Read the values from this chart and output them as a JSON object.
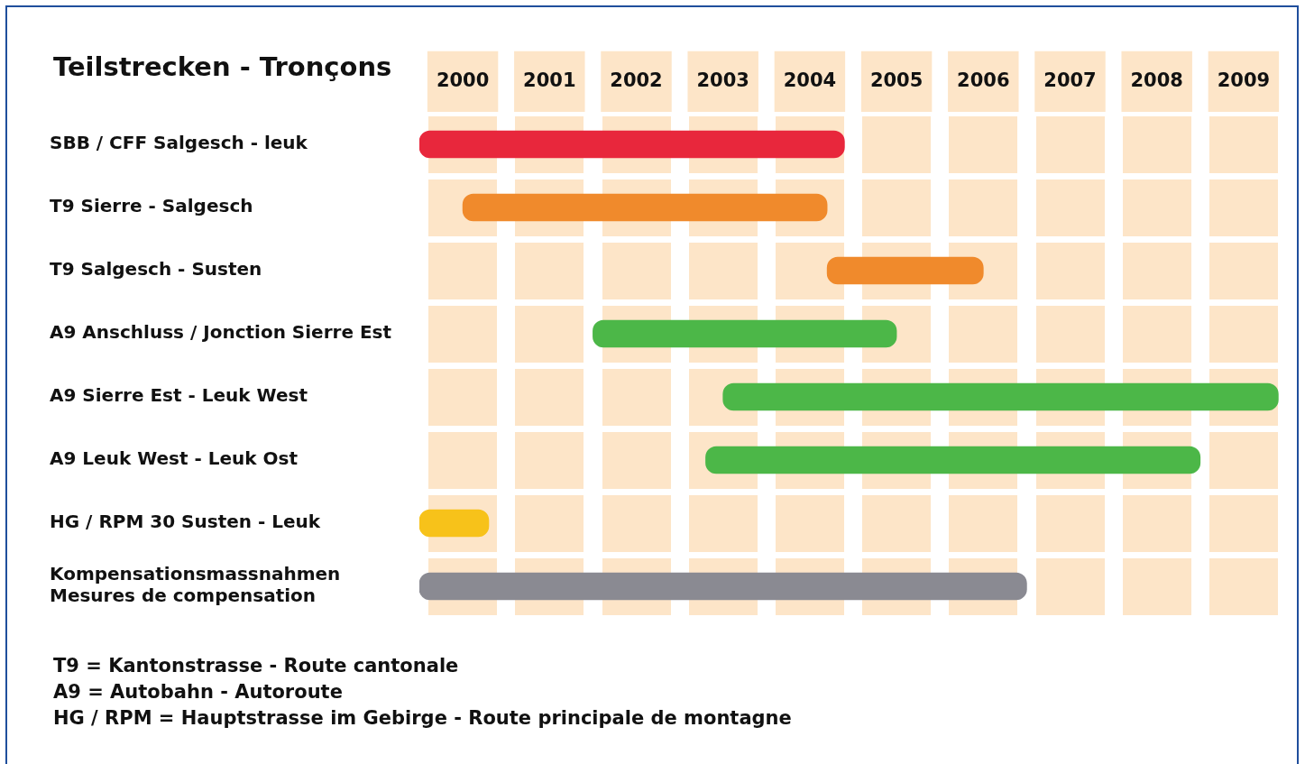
{
  "chart_data": {
    "type": "bar",
    "orientation": "horizontal",
    "title": "Teilstrecken - Tronçons",
    "categories": [
      "SBB / CFF Salgesch - leuk",
      "T9 Sierre - Salgesch",
      "T9 Salgesch - Susten",
      "A9 Anschluss / Jonction Sierre Est",
      "A9 Sierre Est - Leuk West",
      "A9 Leuk West - Leuk Ost",
      "HG / RPM 30 Susten - Leuk",
      "Kompensationsmassnahmen\nMesures de compensation"
    ],
    "base": [
      2000,
      2000.5,
      2004.7,
      2002,
      2003.5,
      2003.3,
      2000,
      2000
    ],
    "values": [
      4.9,
      4.2,
      1.8,
      3.5,
      6.4,
      5.7,
      0.8,
      7
    ],
    "colors": [
      "#e8273c",
      "#f08a2c",
      "#f08a2c",
      "#4cb748",
      "#4cb748",
      "#4cb748",
      "#f7c21a",
      "#8a8a92"
    ],
    "xlim": [
      2000,
      2010
    ],
    "xticks": [
      {
        "value": 2000.5,
        "label": "2000"
      },
      {
        "value": 2001.5,
        "label": "2001"
      },
      {
        "value": 2002.5,
        "label": "2002"
      },
      {
        "value": 2003.5,
        "label": "2003"
      },
      {
        "value": 2004.5,
        "label": "2004"
      },
      {
        "value": 2005.5,
        "label": "2005"
      },
      {
        "value": 2006.5,
        "label": "2006"
      },
      {
        "value": 2007.5,
        "label": "2007"
      },
      {
        "value": 2008.5,
        "label": "2008"
      },
      {
        "value": 2009.5,
        "label": "2009"
      }
    ],
    "grid": true,
    "annotations": [
      "T9 = Kantonstrasse - Route cantonale",
      "A9 = Autobahn - Autoroute",
      "HG / RPM = Hauptstrasse im Gebirge - Route principale de montagne"
    ]
  }
}
